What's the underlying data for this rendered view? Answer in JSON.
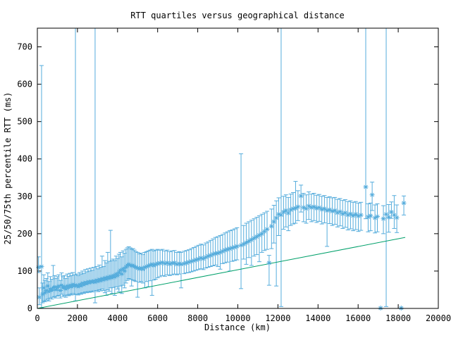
{
  "chart_data": {
    "type": "scatter",
    "title": "RTT quartiles versus geographical distance",
    "xlabel": "Distance (km)",
    "ylabel": "25/50/75th percentile RTT (ms)",
    "xlim": [
      0,
      20000
    ],
    "ylim": [
      0,
      750
    ],
    "xticks": [
      0,
      2000,
      4000,
      6000,
      8000,
      10000,
      12000,
      14000,
      16000,
      18000,
      20000
    ],
    "yticks": [
      0,
      100,
      200,
      300,
      400,
      500,
      600,
      700
    ],
    "grid": false,
    "legend_position": "none",
    "tick_style": "inward-mirrored",
    "colors": {
      "errorbars": "#55acdc",
      "reference_line": "#00a06a",
      "axis": "#000000",
      "background": "#ffffff"
    },
    "series": [
      {
        "name": "rtt_quartiles_25_50_75",
        "style": "yerrorbars",
        "marker": "asterisk",
        "color": "#55acdc",
        "points_format": [
          "distance_km",
          "p25_ms",
          "p50_ms",
          "p75_ms"
        ],
        "points": [
          [
            60,
            96,
            110,
            138
          ],
          [
            100,
            10,
            30,
            55
          ],
          [
            210,
            2,
            112,
            650
          ],
          [
            260,
            15,
            38,
            68
          ],
          [
            320,
            20,
            55,
            90
          ],
          [
            380,
            18,
            42,
            75
          ],
          [
            450,
            22,
            48,
            80
          ],
          [
            520,
            25,
            60,
            95
          ],
          [
            580,
            20,
            45,
            72
          ],
          [
            650,
            28,
            52,
            85
          ],
          [
            720,
            25,
            48,
            78
          ],
          [
            790,
            30,
            55,
            115
          ],
          [
            860,
            32,
            58,
            88
          ],
          [
            930,
            28,
            50,
            80
          ],
          [
            1000,
            33,
            56,
            85
          ],
          [
            1070,
            35,
            60,
            90
          ],
          [
            1140,
            28,
            48,
            75
          ],
          [
            1210,
            38,
            62,
            95
          ],
          [
            1280,
            32,
            55,
            85
          ],
          [
            1350,
            35,
            58,
            88
          ],
          [
            1420,
            30,
            52,
            80
          ],
          [
            1490,
            36,
            60,
            92
          ],
          [
            1560,
            34,
            56,
            86
          ],
          [
            1630,
            38,
            62,
            94
          ],
          [
            1700,
            36,
            58,
            88
          ],
          [
            1770,
            40,
            64,
            96
          ],
          [
            1840,
            37,
            60,
            90
          ],
          [
            1900,
            20,
            63,
            755
          ],
          [
            1970,
            38,
            61,
            92
          ],
          [
            2040,
            36,
            58,
            88
          ],
          [
            2110,
            40,
            64,
            96
          ],
          [
            2180,
            38,
            60,
            92
          ],
          [
            2250,
            42,
            68,
            100
          ],
          [
            2320,
            40,
            63,
            94
          ],
          [
            2390,
            44,
            70,
            104
          ],
          [
            2460,
            42,
            66,
            98
          ],
          [
            2530,
            45,
            72,
            106
          ],
          [
            2600,
            43,
            68,
            100
          ],
          [
            2670,
            46,
            73,
            108
          ],
          [
            2740,
            44,
            70,
            102
          ],
          [
            2810,
            47,
            74,
            110
          ],
          [
            2880,
            15,
            70,
            755
          ],
          [
            2950,
            48,
            76,
            112
          ],
          [
            3020,
            45,
            72,
            106
          ],
          [
            3090,
            50,
            78,
            116
          ],
          [
            3160,
            47,
            74,
            110
          ],
          [
            3230,
            52,
            80,
            140
          ],
          [
            3300,
            48,
            76,
            112
          ],
          [
            3370,
            42,
            82,
            128
          ],
          [
            3440,
            35,
            78,
            122
          ],
          [
            3510,
            50,
            84,
            150
          ],
          [
            3580,
            46,
            80,
            126
          ],
          [
            3650,
            55,
            86,
            209
          ],
          [
            3720,
            40,
            82,
            128
          ],
          [
            3790,
            56,
            88,
            132
          ],
          [
            3860,
            35,
            84,
            128
          ],
          [
            3930,
            58,
            92,
            140
          ],
          [
            4000,
            52,
            88,
            134
          ],
          [
            4070,
            45,
            96,
            145
          ],
          [
            4140,
            60,
            102,
            150
          ],
          [
            4210,
            40,
            92,
            138
          ],
          [
            4280,
            62,
            106,
            154
          ],
          [
            4350,
            55,
            100,
            148
          ],
          [
            4420,
            68,
            110,
            158
          ],
          [
            4490,
            75,
            115,
            162
          ],
          [
            4560,
            80,
            118,
            165
          ],
          [
            4630,
            78,
            116,
            162
          ],
          [
            4700,
            60,
            114,
            158
          ],
          [
            4770,
            76,
            115,
            160
          ],
          [
            4840,
            74,
            112,
            156
          ],
          [
            4910,
            72,
            110,
            152
          ],
          [
            5000,
            30,
            108,
            150
          ],
          [
            5090,
            70,
            106,
            146
          ],
          [
            5180,
            72,
            108,
            148
          ],
          [
            5270,
            68,
            105,
            144
          ],
          [
            5360,
            55,
            110,
            150
          ],
          [
            5450,
            72,
            112,
            152
          ],
          [
            5540,
            58,
            114,
            154
          ],
          [
            5630,
            74,
            116,
            156
          ],
          [
            5720,
            35,
            118,
            158
          ],
          [
            5810,
            76,
            115,
            154
          ],
          [
            5900,
            78,
            118,
            156
          ],
          [
            6000,
            82,
            120,
            158
          ],
          [
            6120,
            85,
            121,
            156
          ],
          [
            6240,
            88,
            123,
            158
          ],
          [
            6360,
            86,
            120,
            154
          ],
          [
            6480,
            90,
            122,
            156
          ],
          [
            6600,
            88,
            119,
            152
          ],
          [
            6720,
            90,
            121,
            154
          ],
          [
            6840,
            92,
            122,
            155
          ],
          [
            6960,
            90,
            118,
            150
          ],
          [
            7080,
            92,
            120,
            152
          ],
          [
            7170,
            55,
            118,
            150
          ],
          [
            7320,
            93,
            120,
            153
          ],
          [
            7440,
            95,
            122,
            155
          ],
          [
            7560,
            96,
            124,
            157
          ],
          [
            7680,
            98,
            126,
            160
          ],
          [
            7800,
            100,
            128,
            163
          ],
          [
            7920,
            102,
            130,
            166
          ],
          [
            8040,
            104,
            132,
            169
          ],
          [
            8160,
            106,
            135,
            172
          ],
          [
            8280,
            104,
            133,
            170
          ],
          [
            8400,
            108,
            137,
            175
          ],
          [
            8520,
            110,
            140,
            178
          ],
          [
            8640,
            112,
            142,
            182
          ],
          [
            8760,
            114,
            145,
            186
          ],
          [
            8880,
            116,
            147,
            190
          ],
          [
            9000,
            112,
            148,
            192
          ],
          [
            9120,
            105,
            150,
            195
          ],
          [
            9240,
            120,
            153,
            198
          ],
          [
            9360,
            122,
            156,
            202
          ],
          [
            9480,
            124,
            158,
            205
          ],
          [
            9600,
            100,
            160,
            208
          ],
          [
            9720,
            126,
            162,
            210
          ],
          [
            9840,
            128,
            164,
            213
          ],
          [
            9960,
            130,
            166,
            216
          ],
          [
            10160,
            53,
            169,
            414
          ],
          [
            10290,
            132,
            172,
            222
          ],
          [
            10420,
            118,
            176,
            228
          ],
          [
            10550,
            136,
            180,
            232
          ],
          [
            10680,
            115,
            184,
            236
          ],
          [
            10810,
            140,
            188,
            240
          ],
          [
            10940,
            144,
            192,
            244
          ],
          [
            11070,
            125,
            196,
            248
          ],
          [
            11200,
            150,
            200,
            252
          ],
          [
            11330,
            155,
            206,
            256
          ],
          [
            11460,
            158,
            212,
            260
          ],
          [
            11560,
            62,
            122,
            142
          ],
          [
            11680,
            160,
            220,
            266
          ],
          [
            11800,
            175,
            232,
            276
          ],
          [
            11920,
            60,
            242,
            288
          ],
          [
            12040,
            195,
            252,
            296
          ],
          [
            12160,
            5,
            250,
            755
          ],
          [
            12280,
            212,
            258,
            300
          ],
          [
            12400,
            218,
            262,
            304
          ],
          [
            12520,
            208,
            255,
            297
          ],
          [
            12640,
            222,
            264,
            306
          ],
          [
            12760,
            226,
            267,
            310
          ],
          [
            12880,
            228,
            268,
            340
          ],
          [
            13000,
            235,
            272,
            315
          ],
          [
            13150,
            258,
            301,
            330
          ],
          [
            13280,
            232,
            270,
            308
          ],
          [
            13410,
            228,
            267,
            304
          ],
          [
            13540,
            238,
            274,
            312
          ],
          [
            13670,
            232,
            270,
            306
          ],
          [
            13800,
            235,
            272,
            308
          ],
          [
            13930,
            230,
            268,
            303
          ],
          [
            14060,
            233,
            270,
            305
          ],
          [
            14190,
            226,
            265,
            300
          ],
          [
            14320,
            229,
            267,
            302
          ],
          [
            14450,
            166,
            262,
            297
          ],
          [
            14580,
            227,
            264,
            299
          ],
          [
            14710,
            222,
            260,
            296
          ],
          [
            14840,
            225,
            262,
            297
          ],
          [
            14970,
            218,
            256,
            292
          ],
          [
            15100,
            221,
            259,
            294
          ],
          [
            15230,
            214,
            253,
            289
          ],
          [
            15360,
            217,
            256,
            291
          ],
          [
            15490,
            210,
            250,
            286
          ],
          [
            15620,
            213,
            253,
            288
          ],
          [
            15750,
            208,
            248,
            284
          ],
          [
            15880,
            211,
            252,
            286
          ],
          [
            16010,
            206,
            247,
            282
          ],
          [
            16140,
            209,
            250,
            284
          ],
          [
            16380,
            240,
            325,
            755
          ],
          [
            16500,
            205,
            245,
            280
          ],
          [
            16620,
            208,
            248,
            282
          ],
          [
            16700,
            262,
            304,
            338
          ],
          [
            16840,
            202,
            242,
            277
          ],
          [
            16960,
            205,
            246,
            280
          ],
          [
            17120,
            0,
            1,
            1
          ],
          [
            17260,
            200,
            240,
            275
          ],
          [
            17400,
            5,
            252,
            755
          ],
          [
            17530,
            204,
            244,
            278
          ],
          [
            17660,
            241,
            258,
            285
          ],
          [
            17800,
            214,
            250,
            302
          ],
          [
            17930,
            203,
            243,
            277
          ],
          [
            18150,
            0,
            1,
            1
          ],
          [
            18280,
            250,
            282,
            301
          ]
        ]
      },
      {
        "name": "reference_line",
        "style": "line",
        "color": "#00a06a",
        "points_format": [
          "distance_km",
          "rtt_ms"
        ],
        "points": [
          [
            0,
            0
          ],
          [
            18350,
            190
          ]
        ]
      }
    ]
  }
}
